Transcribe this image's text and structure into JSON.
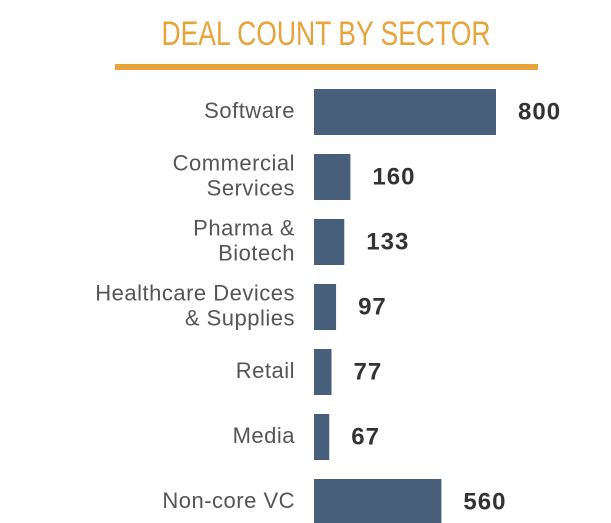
{
  "chart_data": {
    "type": "bar",
    "orientation": "horizontal",
    "title": "DEAL COUNT BY SECTOR",
    "categories": [
      "Software",
      "Commercial\nServices",
      "Pharma &\nBiotech",
      "Healthcare Devices\n& Supplies",
      "Retail",
      "Media",
      "Non-core VC"
    ],
    "values": [
      800,
      160,
      133,
      97,
      77,
      67,
      560
    ],
    "color": "#475f7b",
    "title_color": "#e8a33a",
    "xlim": [
      0,
      800
    ],
    "grid": false
  }
}
